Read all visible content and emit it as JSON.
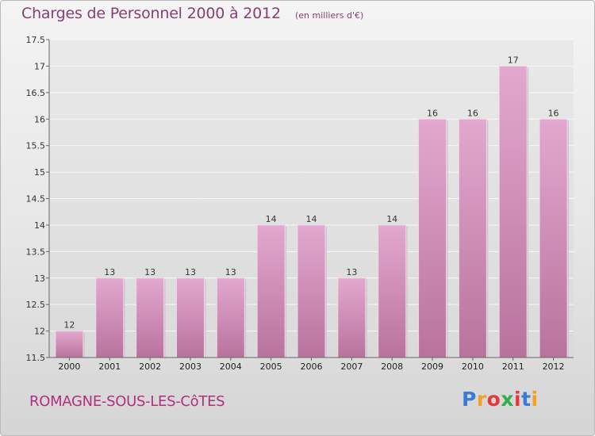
{
  "header": {
    "title": "Charges de Personnel 2000 à 2012",
    "unit_note": "(en milliers d'€)"
  },
  "footer": {
    "commune": "ROMAGNE-SOUS-LES-CôTES",
    "logo_text": "Proxiti"
  },
  "colors": {
    "bar_top": "#e3a8cf",
    "bar_bottom": "#b8739d",
    "title": "#8a3d72",
    "commune": "#b0307f"
  },
  "chart_data": {
    "type": "bar",
    "title": "Charges de Personnel 2000 à 2012",
    "subtitle": "(en milliers d'€)",
    "xlabel": "",
    "ylabel": "",
    "categories": [
      "2000",
      "2001",
      "2002",
      "2003",
      "2004",
      "2005",
      "2006",
      "2007",
      "2008",
      "2009",
      "2010",
      "2011",
      "2012"
    ],
    "values": [
      12,
      13,
      13,
      13,
      13,
      14,
      14,
      13,
      14,
      16,
      16,
      17,
      16
    ],
    "data_labels": [
      "12",
      "13",
      "13",
      "13",
      "13",
      "14",
      "14",
      "13",
      "14",
      "16",
      "16",
      "17",
      "16"
    ],
    "ylim": [
      11.5,
      17.5
    ],
    "yticks": [
      11.5,
      12,
      12.5,
      13,
      13.5,
      14,
      14.5,
      15,
      15.5,
      16,
      16.5,
      17,
      17.5
    ],
    "ytick_labels": [
      "11.5",
      "12",
      "12.5",
      "13",
      "13.5",
      "14",
      "14.5",
      "15",
      "15.5",
      "16",
      "16.5",
      "17",
      "17.5"
    ],
    "grid": true,
    "legend": "none"
  }
}
